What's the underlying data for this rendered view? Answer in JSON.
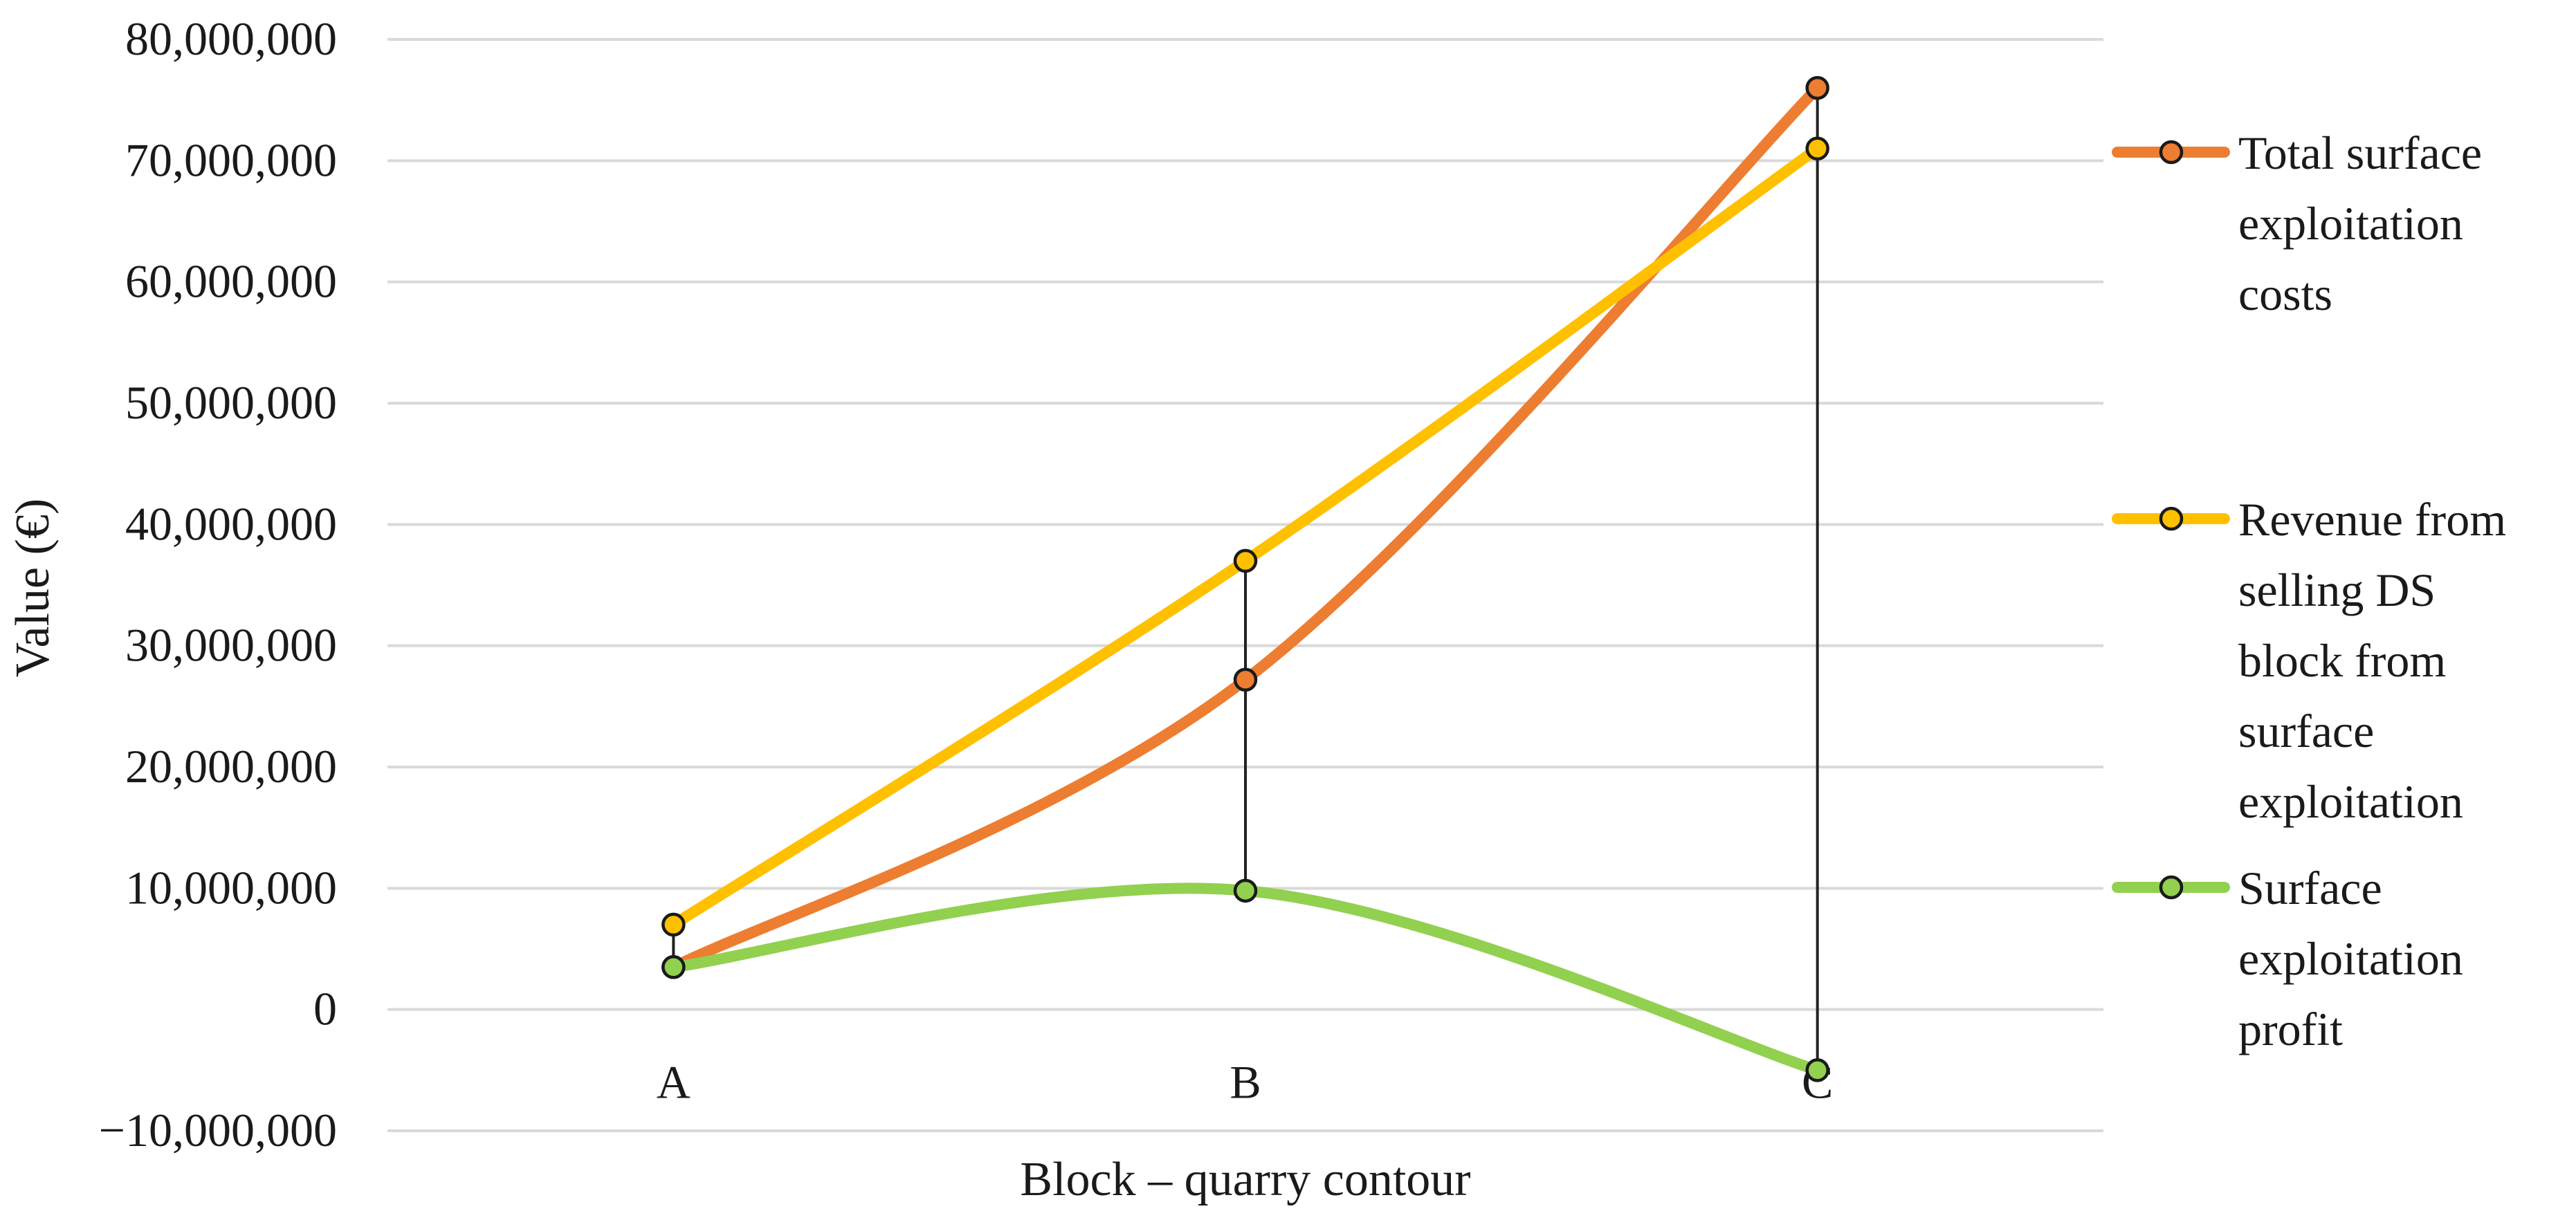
{
  "chart_data": {
    "type": "line",
    "xlabel": "Block – quarry contour",
    "ylabel": "Value (€)",
    "categories": [
      "A",
      "B",
      "C"
    ],
    "ylim": [
      -10000000,
      80000000
    ],
    "yticks": [
      80000000,
      70000000,
      60000000,
      50000000,
      40000000,
      30000000,
      20000000,
      10000000,
      0,
      -10000000
    ],
    "ytick_labels": [
      "80,000,000",
      "70,000,000",
      "60,000,000",
      "50,000,000",
      "40,000,000",
      "30,000,000",
      "20,000,000",
      "10,000,000",
      "0",
      "−10,000,000"
    ],
    "grid": true,
    "smooth_lines": true,
    "high_low_lines": true,
    "legend_position": "right",
    "series": [
      {
        "name": "Total surface exploitation costs",
        "name_lines": [
          "Total surface",
          "exploitation",
          "costs"
        ],
        "color": "#ED7D31",
        "values": [
          3500000,
          27200000,
          76000000
        ]
      },
      {
        "name": "Revenue from selling DS block from surface exploitation",
        "name_lines": [
          "Revenue from",
          "selling DS",
          "block from",
          "surface",
          "exploitation"
        ],
        "color": "#FFC000",
        "values": [
          7000000,
          37000000,
          71000000
        ]
      },
      {
        "name": "Surface exploitation profit",
        "name_lines": [
          "Surface",
          "exploitation",
          "profit"
        ],
        "color": "#92D050",
        "values": [
          3500000,
          9800000,
          -5000000
        ]
      }
    ]
  }
}
